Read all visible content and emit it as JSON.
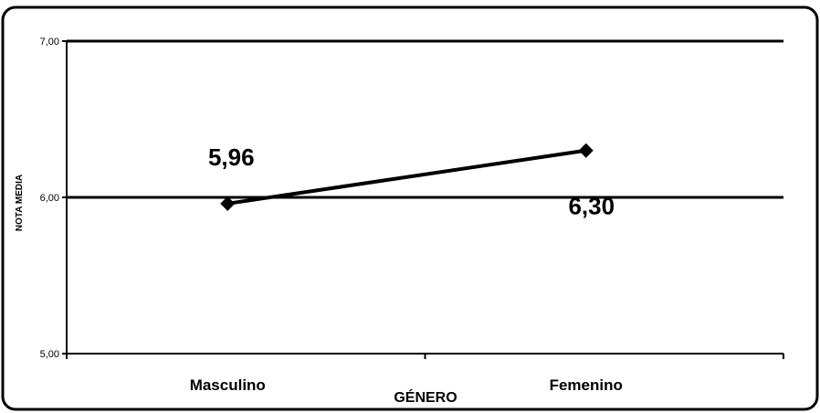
{
  "chart_data": {
    "type": "line",
    "categories": [
      "Masculino",
      "Femenino"
    ],
    "series": [
      {
        "values": [
          5.96,
          6.3
        ]
      }
    ],
    "data_labels": [
      "5,96",
      "6,30"
    ],
    "xlabel": "GÉNERO",
    "ylabel": "NOTA MEDIA",
    "ylim": [
      5.0,
      7.0
    ],
    "yticks": [
      5.0,
      6.0,
      7.0
    ],
    "ytick_labels": [
      "5,00",
      "6,00",
      "7,00"
    ],
    "grid": true,
    "line_color": "#000000",
    "marker": "diamond"
  }
}
